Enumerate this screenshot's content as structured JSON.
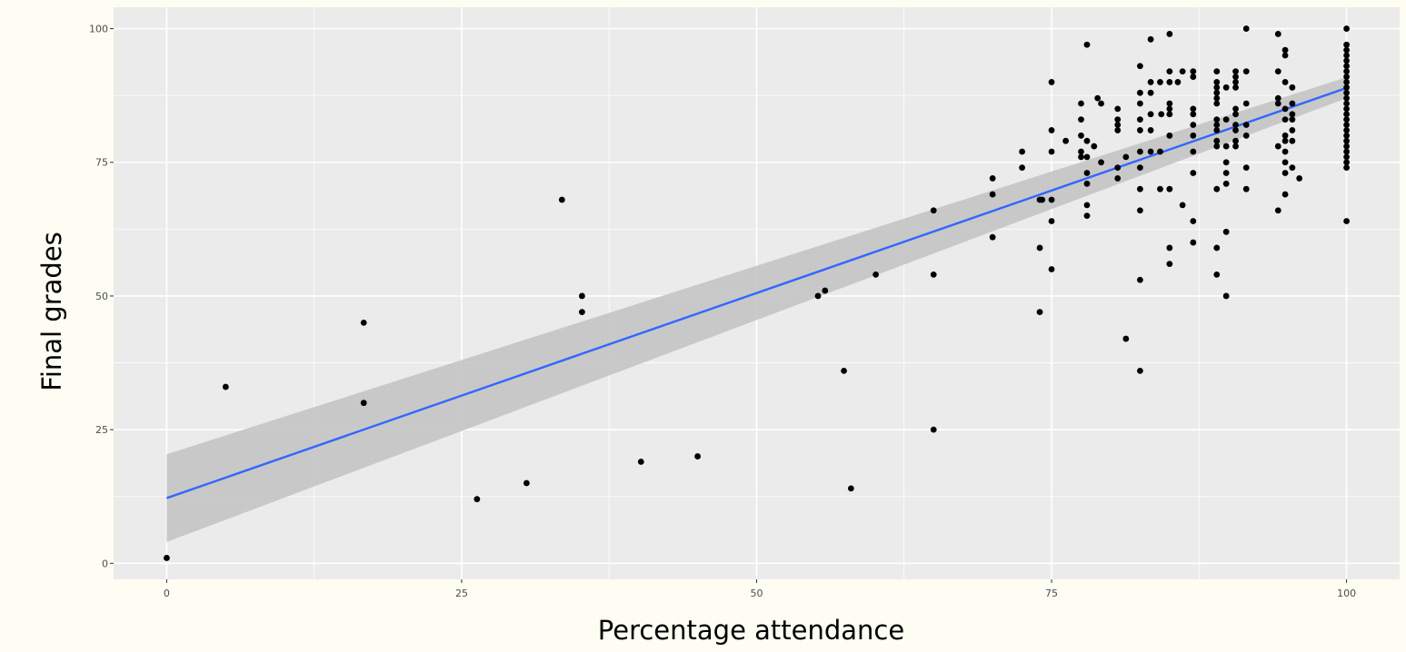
{
  "chart_data": {
    "type": "scatter",
    "title": "",
    "xlabel": "Percentage attendance",
    "ylabel": "Final grades",
    "xlim": [
      -4.5,
      104.5
    ],
    "ylim": [
      -3,
      104
    ],
    "x_ticks": [
      0,
      25,
      50,
      75,
      100
    ],
    "y_ticks": [
      0,
      25,
      50,
      75,
      100
    ],
    "x_tick_labels": [
      "0",
      "25",
      "50",
      "75",
      "100"
    ],
    "y_tick_labels": [
      "0",
      "25",
      "50",
      "75",
      "100"
    ],
    "grid": true,
    "legend": "none",
    "colors": {
      "panel": "#ebebeb",
      "grid": "#ffffff",
      "points": "#000000",
      "fit_line": "#3366ff",
      "confidence_band": "#c4c4c4"
    },
    "fit_line": {
      "x": [
        0,
        100
      ],
      "y": [
        12.2,
        88.9
      ],
      "band_lower": [
        4,
        87
      ],
      "band_upper": [
        20.4,
        90.9
      ]
    },
    "series": [
      {
        "points": [
          [
            0,
            1
          ],
          [
            5,
            33
          ],
          [
            16.7,
            45
          ],
          [
            16.7,
            30
          ],
          [
            26.3,
            12
          ],
          [
            30.5,
            15
          ],
          [
            33.5,
            68
          ],
          [
            35.2,
            50
          ],
          [
            35.2,
            47
          ],
          [
            40.2,
            19
          ],
          [
            45,
            20
          ],
          [
            55.2,
            50
          ],
          [
            55.8,
            51
          ],
          [
            57.4,
            36
          ],
          [
            58,
            14
          ],
          [
            60.1,
            54
          ],
          [
            65,
            66
          ],
          [
            65,
            54
          ],
          [
            65,
            25
          ],
          [
            70,
            72
          ],
          [
            70,
            69
          ],
          [
            70,
            61
          ],
          [
            72.5,
            77
          ],
          [
            72.5,
            74
          ],
          [
            74,
            68
          ],
          [
            74.2,
            68
          ],
          [
            74,
            59
          ],
          [
            74,
            47
          ],
          [
            75,
            90
          ],
          [
            75,
            81
          ],
          [
            75,
            77
          ],
          [
            75,
            68
          ],
          [
            75,
            64
          ],
          [
            75,
            55
          ],
          [
            76.2,
            79
          ],
          [
            77.5,
            86
          ],
          [
            77.5,
            83
          ],
          [
            77.5,
            80
          ],
          [
            77.5,
            77
          ],
          [
            77.5,
            76
          ],
          [
            78,
            97
          ],
          [
            78,
            79
          ],
          [
            78,
            76
          ],
          [
            78,
            73
          ],
          [
            78,
            71
          ],
          [
            78,
            67
          ],
          [
            78,
            65
          ],
          [
            78.6,
            78
          ],
          [
            78.9,
            87
          ],
          [
            79.2,
            86
          ],
          [
            79.2,
            75
          ],
          [
            80.6,
            85
          ],
          [
            80.6,
            83
          ],
          [
            80.6,
            82
          ],
          [
            80.6,
            81
          ],
          [
            80.6,
            74
          ],
          [
            80.6,
            72
          ],
          [
            81.3,
            76
          ],
          [
            81.3,
            42
          ],
          [
            82.5,
            93
          ],
          [
            82.5,
            88
          ],
          [
            82.5,
            86
          ],
          [
            82.5,
            83
          ],
          [
            82.5,
            81
          ],
          [
            82.5,
            77
          ],
          [
            82.5,
            74
          ],
          [
            82.5,
            70
          ],
          [
            82.5,
            66
          ],
          [
            82.5,
            53
          ],
          [
            82.5,
            36
          ],
          [
            83.4,
            98
          ],
          [
            83.4,
            90
          ],
          [
            83.4,
            88
          ],
          [
            83.4,
            84
          ],
          [
            83.4,
            81
          ],
          [
            83.4,
            77
          ],
          [
            84.2,
            70
          ],
          [
            84.2,
            90
          ],
          [
            84.3,
            84
          ],
          [
            84.2,
            77
          ],
          [
            85,
            99
          ],
          [
            85,
            92
          ],
          [
            85,
            90
          ],
          [
            85,
            86
          ],
          [
            85,
            85
          ],
          [
            85,
            84
          ],
          [
            85,
            80
          ],
          [
            85,
            70
          ],
          [
            85,
            59
          ],
          [
            85,
            56
          ],
          [
            85.7,
            90
          ],
          [
            86.1,
            92
          ],
          [
            86.1,
            67
          ],
          [
            87,
            92
          ],
          [
            87,
            91
          ],
          [
            87,
            85
          ],
          [
            87,
            84
          ],
          [
            87,
            82
          ],
          [
            87,
            80
          ],
          [
            87,
            77
          ],
          [
            87,
            73
          ],
          [
            87,
            64
          ],
          [
            87,
            60
          ],
          [
            89,
            92
          ],
          [
            89,
            90
          ],
          [
            89,
            89
          ],
          [
            89,
            88
          ],
          [
            89,
            87
          ],
          [
            89,
            86
          ],
          [
            89,
            83
          ],
          [
            89,
            82
          ],
          [
            89,
            81
          ],
          [
            89,
            79
          ],
          [
            89,
            78
          ],
          [
            89,
            70
          ],
          [
            89,
            59
          ],
          [
            89,
            54
          ],
          [
            89.8,
            89
          ],
          [
            89.8,
            83
          ],
          [
            89.8,
            78
          ],
          [
            89.8,
            75
          ],
          [
            89.8,
            73
          ],
          [
            89.8,
            71
          ],
          [
            89.8,
            62
          ],
          [
            89.8,
            50
          ],
          [
            90.6,
            92
          ],
          [
            90.6,
            91
          ],
          [
            90.6,
            90
          ],
          [
            90.6,
            89
          ],
          [
            90.6,
            85
          ],
          [
            90.6,
            84
          ],
          [
            90.6,
            82
          ],
          [
            90.6,
            81
          ],
          [
            90.6,
            79
          ],
          [
            90.6,
            78
          ],
          [
            91.5,
            100
          ],
          [
            91.5,
            92
          ],
          [
            91.5,
            86
          ],
          [
            91.5,
            82
          ],
          [
            91.5,
            80
          ],
          [
            91.5,
            74
          ],
          [
            91.5,
            70
          ],
          [
            94.2,
            99
          ],
          [
            94.2,
            92
          ],
          [
            94.2,
            87
          ],
          [
            94.2,
            86
          ],
          [
            94.2,
            78
          ],
          [
            94.2,
            66
          ],
          [
            94.8,
            96
          ],
          [
            94.8,
            95
          ],
          [
            94.8,
            90
          ],
          [
            94.8,
            85
          ],
          [
            94.8,
            83
          ],
          [
            94.8,
            80
          ],
          [
            94.8,
            79
          ],
          [
            94.8,
            77
          ],
          [
            94.8,
            75
          ],
          [
            94.8,
            73
          ],
          [
            94.8,
            69
          ],
          [
            95.4,
            89
          ],
          [
            95.4,
            86
          ],
          [
            95.4,
            84
          ],
          [
            95.4,
            83
          ],
          [
            95.4,
            81
          ],
          [
            95.4,
            79
          ],
          [
            95.4,
            74
          ],
          [
            96,
            72
          ],
          [
            100,
            100
          ],
          [
            100,
            97
          ],
          [
            100,
            96
          ],
          [
            100,
            95
          ],
          [
            100,
            94
          ],
          [
            100,
            93
          ],
          [
            100,
            92
          ],
          [
            100,
            91
          ],
          [
            100,
            90
          ],
          [
            100,
            89
          ],
          [
            100,
            88
          ],
          [
            100,
            87
          ],
          [
            100,
            86
          ],
          [
            100,
            85
          ],
          [
            100,
            84
          ],
          [
            100,
            83
          ],
          [
            100,
            82
          ],
          [
            100,
            81
          ],
          [
            100,
            80
          ],
          [
            100,
            79
          ],
          [
            100,
            78
          ],
          [
            100,
            77
          ],
          [
            100,
            76
          ],
          [
            100,
            75
          ],
          [
            100,
            74
          ],
          [
            100,
            64
          ]
        ]
      }
    ]
  }
}
